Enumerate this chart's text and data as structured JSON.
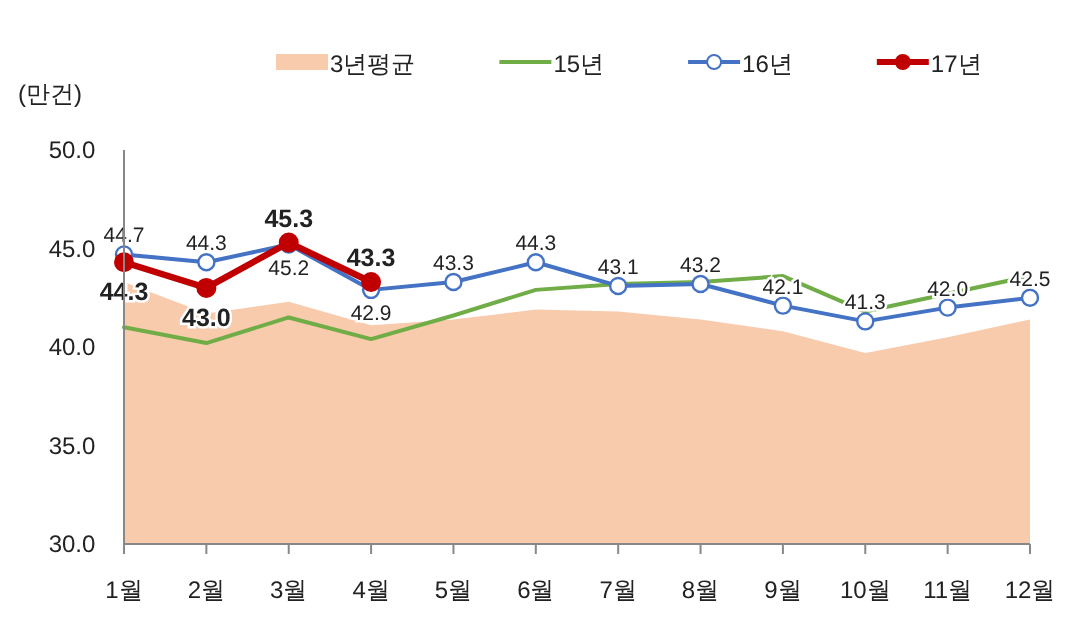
{
  "chart_data": {
    "type": "line",
    "ylabel": "(만건)",
    "categories": [
      "1월",
      "2월",
      "3월",
      "4월",
      "5월",
      "6월",
      "7월",
      "8월",
      "9월",
      "10월",
      "11월",
      "12월"
    ],
    "ylim": [
      30,
      50
    ],
    "yticks": [
      {
        "value": 30,
        "label": "30.0"
      },
      {
        "value": 35,
        "label": "35.0"
      },
      {
        "value": 40,
        "label": "40.0"
      },
      {
        "value": 45,
        "label": "45.0"
      },
      {
        "value": 50,
        "label": "50.0"
      }
    ],
    "grid": false,
    "legend": "top",
    "series": [
      {
        "name": "3년평균",
        "type": "area",
        "color": "#f8cbad",
        "values": [
          43.3,
          41.7,
          42.3,
          41.1,
          41.4,
          41.9,
          41.8,
          41.4,
          40.8,
          39.7,
          40.5,
          41.4
        ]
      },
      {
        "name": "15년",
        "color": "#70ad47",
        "marker": "none",
        "values": [
          41.0,
          40.2,
          41.5,
          40.4,
          41.6,
          42.9,
          43.2,
          43.3,
          43.6,
          41.8,
          42.7,
          43.6
        ]
      },
      {
        "name": "16년",
        "color": "#4472c4",
        "marker": "circle",
        "values": [
          44.7,
          44.3,
          45.2,
          42.9,
          43.3,
          44.3,
          43.1,
          43.2,
          42.1,
          41.3,
          42.0,
          42.5
        ],
        "value_labels": [
          "44.7",
          "44.3",
          "45.2",
          "42.9",
          "43.3",
          "44.3",
          "43.1",
          "43.2",
          "42.1",
          "41.3",
          "42.0",
          "42.5"
        ]
      },
      {
        "name": "17년",
        "color": "#c00000",
        "marker": "circle",
        "values": [
          44.3,
          43.0,
          45.3,
          43.3,
          null,
          null,
          null,
          null,
          null,
          null,
          null,
          null
        ],
        "value_labels": [
          "44.3",
          "43.0",
          "45.3",
          "43.3",
          null,
          null,
          null,
          null,
          null,
          null,
          null,
          null
        ]
      }
    ]
  }
}
